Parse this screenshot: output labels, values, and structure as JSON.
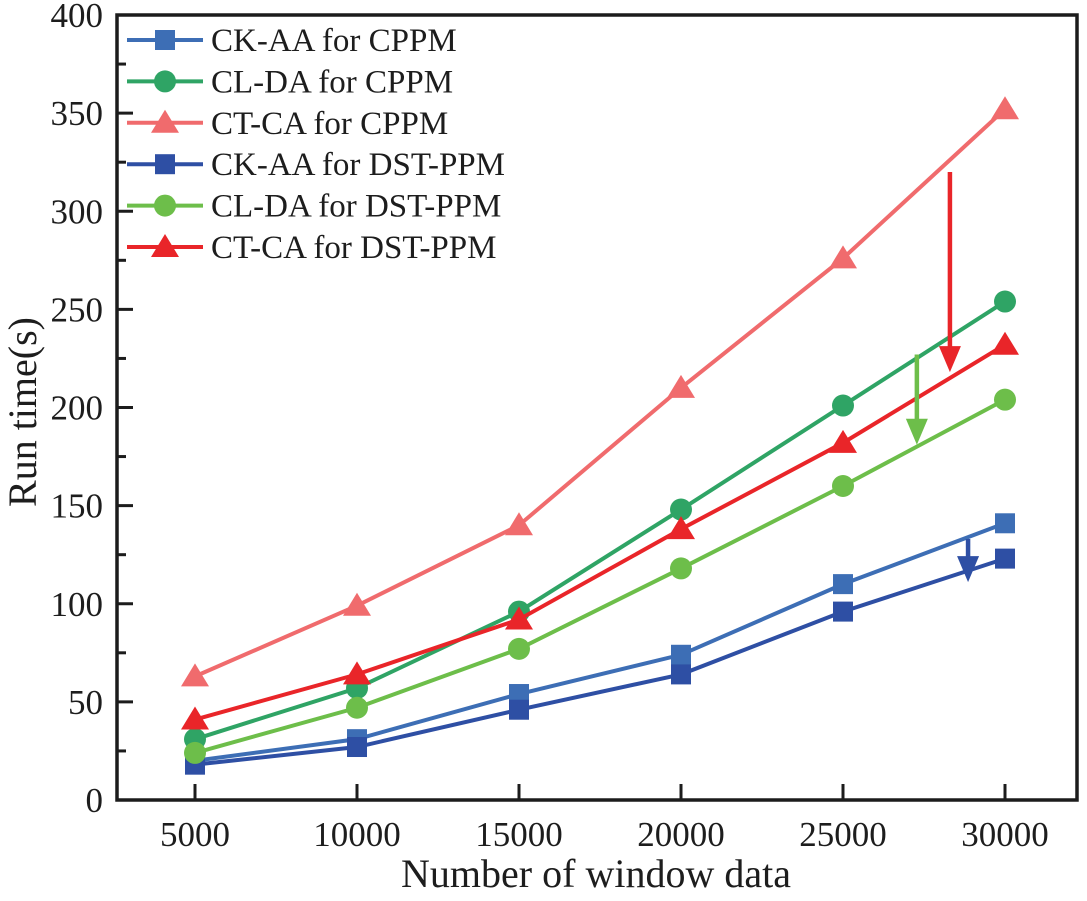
{
  "figure": {
    "background": "#ffffff",
    "axis_color": "#1c1c1c"
  },
  "chart_data": {
    "type": "line",
    "title": "",
    "xlabel": "Number of window data",
    "ylabel": "Run time(s)",
    "x": [
      5000,
      10000,
      15000,
      20000,
      25000,
      30000
    ],
    "x_tick_labels": [
      "5000",
      "10000",
      "15000",
      "20000",
      "25000",
      "30000"
    ],
    "ylim": [
      0,
      400
    ],
    "xlim_px_padding": "x axis spans ~2600 to ~32300",
    "y_major_ticks": [
      0,
      50,
      100,
      150,
      200,
      250,
      300,
      350,
      400
    ],
    "y_tick_labels": [
      "0",
      "50",
      "100",
      "150",
      "200",
      "250",
      "300",
      "350",
      "400"
    ],
    "y_minor_step": 25,
    "grid": false,
    "legend_position": "top-left",
    "series": [
      {
        "name": "CK-AA for CPPM",
        "marker": "square",
        "color": "#3d6eb5",
        "values": [
          20,
          31,
          54,
          74,
          110,
          141
        ]
      },
      {
        "name": "CL-DA for CPPM",
        "marker": "circle",
        "color": "#2fa465",
        "values": [
          31,
          57,
          96,
          148,
          201,
          254
        ]
      },
      {
        "name": "CT-CA for CPPM",
        "marker": "triangle",
        "color": "#f06b6d",
        "values": [
          63,
          99,
          140,
          210,
          276,
          352
        ]
      },
      {
        "name": "CK-AA for DST-PPM",
        "marker": "square",
        "color": "#2e4fa4",
        "values": [
          18,
          27,
          46,
          64,
          96,
          123
        ]
      },
      {
        "name": "CL-DA for DST-PPM",
        "marker": "circle",
        "color": "#6dbe4a",
        "values": [
          24,
          47,
          77,
          118,
          160,
          204
        ]
      },
      {
        "name": "CT-CA for DST-PPM",
        "marker": "triangle",
        "color": "#e92529",
        "values": [
          41,
          64,
          92,
          138,
          182,
          232
        ]
      }
    ],
    "annotations": [
      {
        "type": "arrow-down",
        "color": "#e92529",
        "x": 28300,
        "y_from": 320,
        "y_to": 218
      },
      {
        "type": "arrow-down",
        "color": "#6dbe4a",
        "x": 27280,
        "y_from": 227,
        "y_to": 181
      },
      {
        "type": "arrow-down",
        "color": "#2e4fa4",
        "x": 28860,
        "y_from": 133,
        "y_to": 111
      }
    ]
  }
}
